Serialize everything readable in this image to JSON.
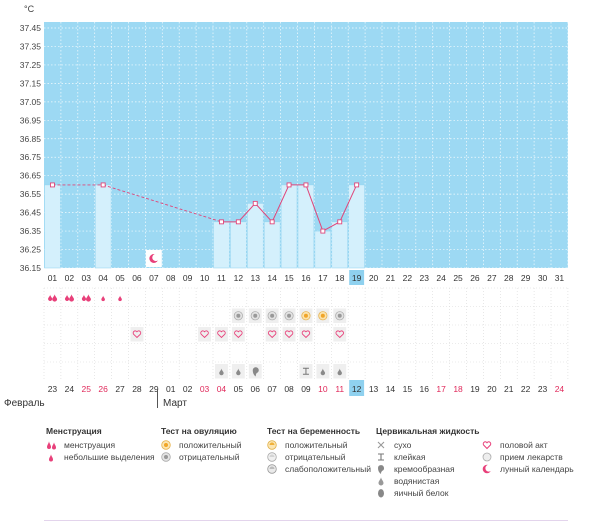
{
  "unit_label": "°C",
  "colors": {
    "sky": "#9dd9f3",
    "bar": "#d4f0fc",
    "bar_border": "#8fd3f0",
    "line": "#e0467a",
    "pink": "#e8407a",
    "red_date": "#e0285a",
    "today_bg": "#8fd1ef"
  },
  "chart_data": {
    "type": "line",
    "y_ticks": [
      "37.45",
      "37.35",
      "37.25",
      "37.15",
      "37.05",
      "36.95",
      "36.85",
      "36.75",
      "36.65",
      "36.55",
      "36.45",
      "36.35",
      "36.25",
      "36.15"
    ],
    "ylim": [
      36.15,
      37.45
    ],
    "day_labels": [
      "01",
      "02",
      "03",
      "04",
      "05",
      "06",
      "07",
      "08",
      "09",
      "10",
      "11",
      "12",
      "13",
      "14",
      "15",
      "16",
      "17",
      "18",
      "19",
      "20",
      "21",
      "22",
      "23",
      "24",
      "25",
      "26",
      "27",
      "28",
      "29",
      "30",
      "31"
    ],
    "highlight_day": "19",
    "points": [
      {
        "day": 1,
        "temp": 36.6
      },
      {
        "day": 4,
        "temp": 36.6
      },
      {
        "day": 11,
        "temp": 36.4
      },
      {
        "day": 12,
        "temp": 36.4
      },
      {
        "day": 13,
        "temp": 36.5
      },
      {
        "day": 14,
        "temp": 36.4
      },
      {
        "day": 15,
        "temp": 36.6
      },
      {
        "day": 16,
        "temp": 36.6
      },
      {
        "day": 17,
        "temp": 36.35
      },
      {
        "day": 18,
        "temp": 36.4
      },
      {
        "day": 19,
        "temp": 36.6
      }
    ],
    "dashed_segments": [
      [
        1,
        4
      ],
      [
        4,
        11
      ]
    ]
  },
  "event_rows": {
    "menstruation": [
      {
        "day": 1,
        "kind": "heavy"
      },
      {
        "day": 2,
        "kind": "heavy"
      },
      {
        "day": 3,
        "kind": "heavy"
      },
      {
        "day": 4,
        "kind": "light"
      },
      {
        "day": 5,
        "kind": "light"
      }
    ],
    "lunar": [
      7
    ],
    "ovulation": [
      {
        "day": 12,
        "kind": "neg"
      },
      {
        "day": 13,
        "kind": "neg"
      },
      {
        "day": 14,
        "kind": "neg"
      },
      {
        "day": 15,
        "kind": "neg"
      },
      {
        "day": 16,
        "kind": "pos"
      },
      {
        "day": 17,
        "kind": "pos"
      },
      {
        "day": 18,
        "kind": "neg"
      }
    ],
    "intercourse": [
      6,
      10,
      11,
      12,
      14,
      15,
      16,
      18
    ],
    "cervical": [
      {
        "day": 11,
        "kind": "drop"
      },
      {
        "day": 12,
        "kind": "drop"
      },
      {
        "day": 13,
        "kind": "cream"
      },
      {
        "day": 16,
        "kind": "sticky"
      },
      {
        "day": 17,
        "kind": "drop"
      },
      {
        "day": 18,
        "kind": "drop"
      }
    ]
  },
  "cycle_dates": [
    {
      "d": "23",
      "red": false
    },
    {
      "d": "24",
      "red": false
    },
    {
      "d": "25",
      "red": true
    },
    {
      "d": "26",
      "red": true
    },
    {
      "d": "27",
      "red": false
    },
    {
      "d": "28",
      "red": false
    },
    {
      "d": "29",
      "red": false
    },
    {
      "d": "01",
      "red": false
    },
    {
      "d": "02",
      "red": false
    },
    {
      "d": "03",
      "red": true
    },
    {
      "d": "04",
      "red": true
    },
    {
      "d": "05",
      "red": false
    },
    {
      "d": "06",
      "red": false
    },
    {
      "d": "07",
      "red": false
    },
    {
      "d": "08",
      "red": false
    },
    {
      "d": "09",
      "red": false
    },
    {
      "d": "10",
      "red": true
    },
    {
      "d": "11",
      "red": true
    },
    {
      "d": "12",
      "red": false
    },
    {
      "d": "13",
      "red": false
    },
    {
      "d": "14",
      "red": false
    },
    {
      "d": "15",
      "red": false
    },
    {
      "d": "16",
      "red": false
    },
    {
      "d": "17",
      "red": true
    },
    {
      "d": "18",
      "red": true
    },
    {
      "d": "19",
      "red": false
    },
    {
      "d": "20",
      "red": false
    },
    {
      "d": "21",
      "red": false
    },
    {
      "d": "22",
      "red": false
    },
    {
      "d": "23",
      "red": false
    },
    {
      "d": "24",
      "red": true
    }
  ],
  "months": {
    "first": "Февраль",
    "second": "Март"
  },
  "legend": {
    "menstruation": {
      "title": "Менструация",
      "items": [
        "менструация",
        "небольшие выделения"
      ]
    },
    "ovulation": {
      "title": "Тест на овуляцию",
      "items": [
        "положительный",
        "отрицательный"
      ]
    },
    "pregnancy": {
      "title": "Тест на беременность",
      "items": [
        "положительный",
        "отрицательный",
        "слабоположительный"
      ]
    },
    "cervical": {
      "title": "Цервикальная жидкость",
      "items": [
        "сухо",
        "клейкая",
        "кремообразная",
        "водянистая",
        "яичный белок"
      ]
    },
    "other": {
      "items": [
        "половой акт",
        "прием лекарств",
        "лунный календарь"
      ]
    }
  }
}
